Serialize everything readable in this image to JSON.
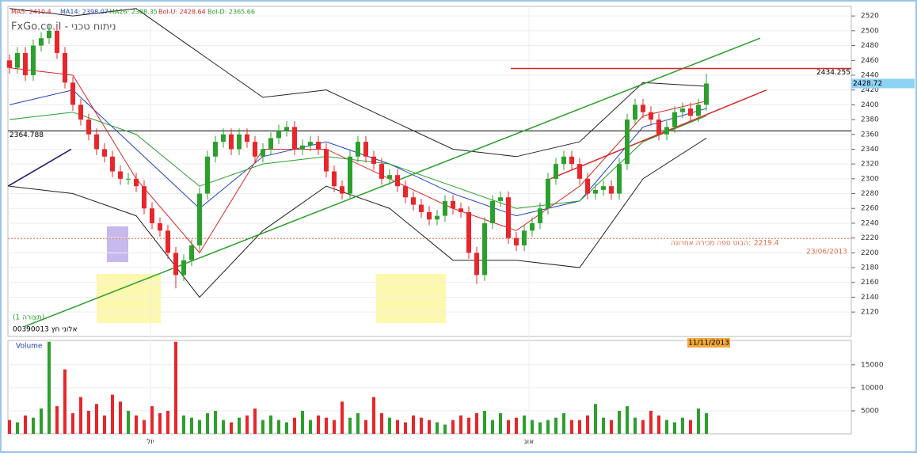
{
  "chart_data": [
    {
      "type": "candlestick",
      "watermark": "FxGo.co.il - ניתוח טכני",
      "instrument": "00390013 אלוני חץ",
      "pattern_label": "(1 תצורה)",
      "legend": [
        {
          "text": "MA5: 2410.4",
          "color": "#d62728"
        },
        {
          "text": "MA14: 2398.07",
          "color": "#1f3fbf"
        },
        {
          "text": "MA26: 2388.35",
          "color": "#2a9d2a"
        },
        {
          "text": "Bol-U: 2428.64",
          "color": "#d62728"
        },
        {
          "text": "Bol-D: 2365.66",
          "color": "#2a9d2a"
        }
      ],
      "month_labels": [
        {
          "index": 17.8,
          "label": "יול"
        },
        {
          "index": 65.6,
          "label": "אוג"
        }
      ],
      "ylim": [
        2087,
        2533
      ],
      "yticks": [
        2120,
        2140,
        2160,
        2180,
        2200,
        2220,
        2240,
        2260,
        2280,
        2300,
        2320,
        2340,
        2360,
        2380,
        2400,
        2420,
        2440,
        2460,
        2480,
        2500,
        2520
      ],
      "up_color": "#2ca02c",
      "down_color": "#e8262b",
      "open": [
        2460,
        2450,
        2470,
        2440,
        2480,
        2490,
        2500,
        2470,
        2430,
        2400,
        2380,
        2360,
        2340,
        2330,
        2310,
        2300,
        2300,
        2290,
        2260,
        2240,
        2230,
        2200,
        2170,
        2190,
        2210,
        2280,
        2330,
        2350,
        2360,
        2340,
        2360,
        2350,
        2330,
        2340,
        2355,
        2365,
        2370,
        2340,
        2345,
        2350,
        2340,
        2310,
        2290,
        2280,
        2330,
        2350,
        2330,
        2320,
        2300,
        2305,
        2290,
        2275,
        2265,
        2255,
        2245,
        2250,
        2270,
        2260,
        2255,
        2200,
        2170,
        2240,
        2270,
        2275,
        2220,
        2210,
        2230,
        2240,
        2260,
        2300,
        2320,
        2330,
        2320,
        2300,
        2280,
        2285,
        2290,
        2280,
        2320,
        2380,
        2400,
        2390,
        2380,
        2360,
        2370,
        2390,
        2395,
        2385,
        2400
      ],
      "high": [
        2468,
        2478,
        2478,
        2488,
        2498,
        2508,
        2508,
        2478,
        2438,
        2408,
        2388,
        2368,
        2348,
        2338,
        2318,
        2308,
        2308,
        2298,
        2268,
        2248,
        2238,
        2208,
        2198,
        2218,
        2288,
        2338,
        2358,
        2368,
        2368,
        2368,
        2368,
        2358,
        2348,
        2363,
        2373,
        2378,
        2378,
        2353,
        2358,
        2358,
        2348,
        2318,
        2298,
        2338,
        2358,
        2358,
        2338,
        2328,
        2313,
        2313,
        2298,
        2283,
        2273,
        2263,
        2258,
        2278,
        2278,
        2268,
        2263,
        2208,
        2248,
        2278,
        2283,
        2283,
        2228,
        2238,
        2248,
        2268,
        2308,
        2328,
        2338,
        2338,
        2328,
        2308,
        2293,
        2298,
        2298,
        2328,
        2388,
        2408,
        2408,
        2398,
        2388,
        2378,
        2398,
        2403,
        2403,
        2408,
        2442
      ],
      "low": [
        2442,
        2442,
        2432,
        2432,
        2472,
        2482,
        2462,
        2422,
        2392,
        2372,
        2352,
        2332,
        2322,
        2302,
        2292,
        2292,
        2282,
        2252,
        2232,
        2222,
        2192,
        2152,
        2162,
        2182,
        2202,
        2272,
        2322,
        2342,
        2332,
        2332,
        2342,
        2322,
        2322,
        2332,
        2347,
        2357,
        2332,
        2332,
        2337,
        2332,
        2302,
        2282,
        2272,
        2272,
        2322,
        2322,
        2312,
        2292,
        2292,
        2282,
        2267,
        2257,
        2247,
        2237,
        2237,
        2242,
        2252,
        2247,
        2192,
        2158,
        2162,
        2232,
        2262,
        2212,
        2202,
        2202,
        2222,
        2232,
        2252,
        2292,
        2312,
        2312,
        2292,
        2272,
        2272,
        2277,
        2272,
        2272,
        2312,
        2372,
        2382,
        2372,
        2352,
        2352,
        2362,
        2382,
        2377,
        2377,
        2392
      ],
      "close": [
        2450,
        2470,
        2440,
        2480,
        2490,
        2500,
        2470,
        2430,
        2400,
        2380,
        2360,
        2340,
        2330,
        2310,
        2300,
        2300,
        2290,
        2260,
        2240,
        2230,
        2200,
        2170,
        2190,
        2210,
        2280,
        2330,
        2350,
        2360,
        2340,
        2360,
        2350,
        2330,
        2340,
        2355,
        2365,
        2370,
        2340,
        2345,
        2350,
        2340,
        2310,
        2290,
        2280,
        2330,
        2350,
        2330,
        2320,
        2300,
        2305,
        2290,
        2275,
        2265,
        2255,
        2245,
        2250,
        2270,
        2260,
        2255,
        2200,
        2170,
        2240,
        2270,
        2275,
        2220,
        2210,
        2230,
        2240,
        2260,
        2300,
        2320,
        2330,
        2320,
        2300,
        2280,
        2285,
        2290,
        2280,
        2320,
        2380,
        2400,
        2390,
        2380,
        2360,
        2370,
        2390,
        2395,
        2385,
        2400,
        2428.72
      ],
      "price_tag_color": "#8fd3f4",
      "series": [
        {
          "color": "#222222",
          "x": [
            0,
            8,
            16,
            24,
            32,
            40,
            48,
            56,
            64,
            72,
            80,
            88
          ],
          "values": [
            2530,
            2520,
            2530,
            2470,
            2410,
            2420,
            2380,
            2340,
            2330,
            2350,
            2430,
            2425
          ]
        },
        {
          "color": "#222222",
          "x": [
            0,
            8,
            16,
            24,
            32,
            40,
            48,
            56,
            64,
            72,
            80,
            88
          ],
          "values": [
            2290,
            2280,
            2250,
            2140,
            2230,
            2290,
            2260,
            2190,
            2190,
            2180,
            2300,
            2355
          ]
        },
        {
          "color": "#1f3fbf",
          "x": [
            0,
            8,
            16,
            24,
            32,
            40,
            48,
            56,
            64,
            72,
            80,
            88
          ],
          "values": [
            2400,
            2420,
            2340,
            2260,
            2330,
            2350,
            2320,
            2280,
            2250,
            2270,
            2370,
            2395
          ]
        },
        {
          "color": "#d62728",
          "x": [
            0,
            8,
            16,
            24,
            32,
            40,
            48,
            56,
            64,
            72,
            80,
            88
          ],
          "values": [
            2450,
            2440,
            2300,
            2200,
            2340,
            2340,
            2300,
            2260,
            2230,
            2290,
            2385,
            2405
          ]
        },
        {
          "color": "#2a9d2a",
          "x": [
            0,
            8,
            16,
            24,
            32,
            40,
            48,
            56,
            64,
            72,
            80,
            88
          ],
          "values": [
            2380,
            2390,
            2360,
            2290,
            2320,
            2330,
            2320,
            2290,
            2260,
            2270,
            2350,
            2385
          ]
        }
      ],
      "lines": [
        {
          "color": "#2a9d2a",
          "x": [
            1.8,
            94.8
          ],
          "values": [
            2100,
            2490
          ]
        },
        {
          "color": "#d62728",
          "x": [
            68.3,
            95.6
          ],
          "values": [
            2300,
            2420
          ]
        },
        {
          "color": "#1a1a6e",
          "x": [
            -0.2,
            7.8
          ],
          "values": [
            2290,
            2340
          ]
        },
        {
          "color": "#d62728",
          "x": [
            63.3,
            106.3
          ],
          "values": [
            2449,
            2449
          ]
        }
      ],
      "resistance_label": "2434.255",
      "hline": {
        "value": 2364.788,
        "color": "#000000"
      },
      "support": {
        "value": 2219.4,
        "text": "הבוט ספה מכירה אחרונה:",
        "date": "23/06/2013",
        "color": "#e0704a"
      }
    },
    {
      "type": "bar",
      "title": "Volume",
      "date_tag": "11/11/2013",
      "ylim": [
        0,
        20300
      ],
      "yticks": [
        5000,
        10000,
        15000
      ],
      "values": [
        3000,
        2500,
        4000,
        3500,
        5500,
        20000,
        6000,
        14000,
        4500,
        8000,
        5000,
        6500,
        4000,
        8500,
        7000,
        5000,
        4000,
        3000,
        6000,
        4500,
        5000,
        20000,
        4000,
        3500,
        3000,
        4500,
        5000,
        3000,
        2500,
        3500,
        4000,
        5500,
        3000,
        4000,
        3000,
        2500,
        3500,
        5000,
        3000,
        4000,
        3500,
        3000,
        7000,
        3500,
        4500,
        3000,
        8000,
        4500,
        3500,
        3000,
        2500,
        4000,
        3500,
        3000,
        2500,
        2000,
        3000,
        4000,
        3500,
        4500,
        5000,
        3000,
        4500,
        3000,
        3500,
        4000,
        3000,
        2500,
        3000,
        3500,
        4500,
        3000,
        3000,
        4000,
        6500,
        3500,
        3000,
        5000,
        6000,
        3500,
        3000,
        5000,
        4000,
        3000,
        2500,
        3500,
        3000,
        5500,
        4500
      ]
    }
  ]
}
